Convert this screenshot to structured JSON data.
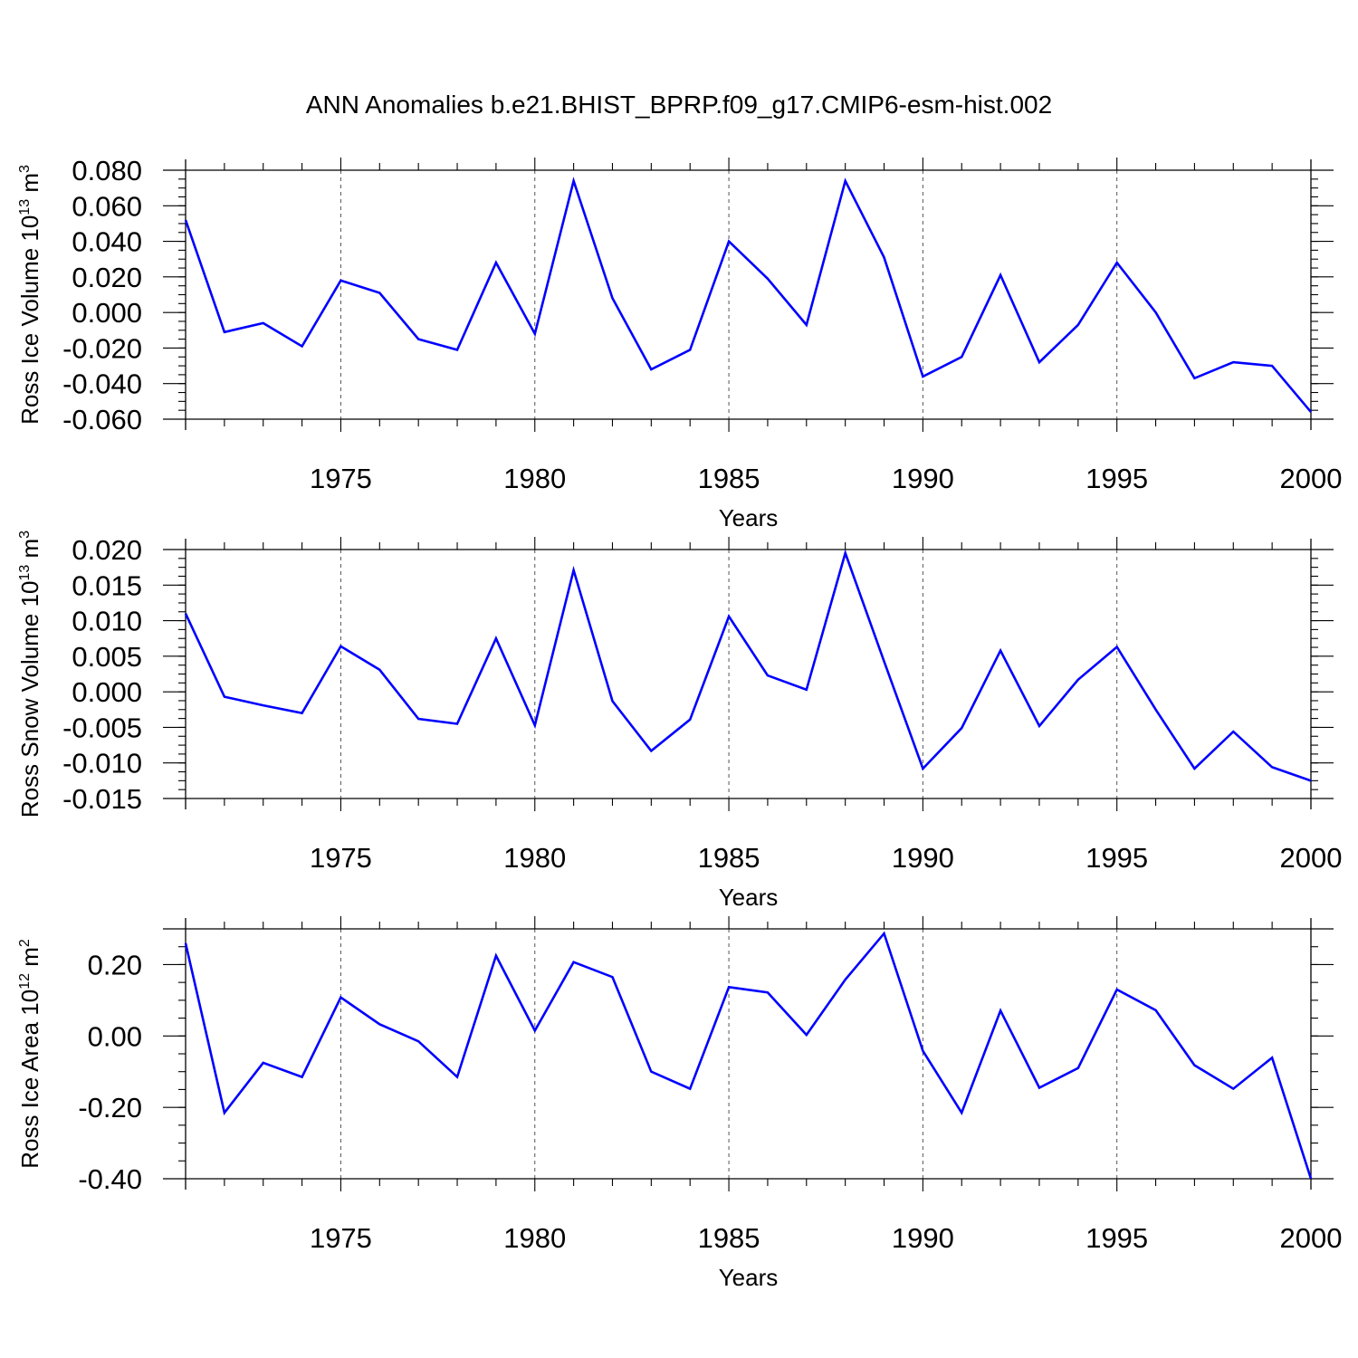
{
  "title": "ANN Anomalies b.e21.BHIST_BPRP.f09_g17.CMIP6-esm-hist.002",
  "colors": {
    "series": "#0000ff",
    "axes": "#000000",
    "grid": "#555555"
  },
  "chart_data": [
    {
      "type": "line",
      "ylabel_parts": [
        "Ross Ice Volume 10",
        "13",
        " m",
        "3"
      ],
      "xlabel": "Years",
      "xlim": [
        1971,
        2000
      ],
      "ylim": [
        -0.06,
        0.08
      ],
      "x_major_ticks": [
        1975,
        1980,
        1985,
        1990,
        1995,
        2000
      ],
      "x_tick_labels": [
        "1975",
        "1980",
        "1985",
        "1990",
        "1995",
        "2000"
      ],
      "y_major_ticks": [
        -0.06,
        -0.04,
        -0.02,
        0.0,
        0.02,
        0.04,
        0.06,
        0.08
      ],
      "y_tick_labels": [
        "-0.060",
        "-0.040",
        "-0.020",
        "0.000",
        "0.020",
        "0.040",
        "0.060",
        "0.080"
      ],
      "y_minor_step": 0.005,
      "grid": "vertical dashed at major x ticks",
      "x": [
        1971,
        1972,
        1973,
        1974,
        1975,
        1976,
        1977,
        1978,
        1979,
        1980,
        1981,
        1982,
        1983,
        1984,
        1985,
        1986,
        1987,
        1988,
        1989,
        1990,
        1991,
        1992,
        1993,
        1994,
        1995,
        1996,
        1997,
        1998,
        1999,
        2000
      ],
      "values": [
        0.052,
        -0.011,
        -0.006,
        -0.019,
        0.018,
        0.011,
        -0.015,
        -0.021,
        0.028,
        -0.012,
        0.074,
        0.008,
        -0.032,
        -0.021,
        0.04,
        0.019,
        -0.007,
        0.074,
        0.031,
        -0.036,
        -0.025,
        0.021,
        -0.028,
        -0.007,
        0.028,
        0.0,
        -0.037,
        -0.028,
        -0.03,
        -0.056
      ]
    },
    {
      "type": "line",
      "ylabel_parts": [
        "Ross Snow Volume 10",
        "13",
        " m",
        "3"
      ],
      "xlabel": "Years",
      "xlim": [
        1971,
        2000
      ],
      "ylim": [
        -0.015,
        0.02
      ],
      "x_major_ticks": [
        1975,
        1980,
        1985,
        1990,
        1995,
        2000
      ],
      "x_tick_labels": [
        "1975",
        "1980",
        "1985",
        "1990",
        "1995",
        "2000"
      ],
      "y_major_ticks": [
        -0.015,
        -0.01,
        -0.005,
        0.0,
        0.005,
        0.01,
        0.015,
        0.02
      ],
      "y_tick_labels": [
        "-0.015",
        "-0.010",
        "-0.005",
        "0.000",
        "0.005",
        "0.010",
        "0.015",
        "0.020"
      ],
      "y_minor_step": 0.00125,
      "grid": "vertical dashed at major x ticks",
      "x": [
        1971,
        1972,
        1973,
        1974,
        1975,
        1976,
        1977,
        1978,
        1979,
        1980,
        1981,
        1982,
        1983,
        1984,
        1985,
        1986,
        1987,
        1988,
        1989,
        1990,
        1991,
        1992,
        1993,
        1994,
        1995,
        1996,
        1997,
        1998,
        1999,
        2000
      ],
      "values": [
        0.011,
        -0.0007,
        -0.0019,
        -0.003,
        0.0064,
        0.0031,
        -0.0038,
        -0.0045,
        0.0075,
        -0.0047,
        0.0171,
        -0.0013,
        -0.0083,
        -0.0039,
        0.0106,
        0.0023,
        0.0003,
        0.0195,
        0.0043,
        -0.0108,
        -0.0051,
        0.0058,
        -0.0048,
        0.0017,
        0.0063,
        -0.0025,
        -0.0108,
        -0.0056,
        -0.0106,
        -0.0125
      ]
    },
    {
      "type": "line",
      "ylabel_parts": [
        "Ross Ice Area 10",
        "12",
        " m",
        "2"
      ],
      "xlabel": "Years",
      "xlim": [
        1971,
        2000
      ],
      "ylim": [
        -0.4,
        0.3
      ],
      "x_major_ticks": [
        1975,
        1980,
        1985,
        1990,
        1995,
        2000
      ],
      "x_tick_labels": [
        "1975",
        "1980",
        "1985",
        "1990",
        "1995",
        "2000"
      ],
      "y_major_ticks": [
        -0.4,
        -0.2,
        0.0,
        0.2
      ],
      "y_tick_labels": [
        "-0.40",
        "-0.20",
        "0.00",
        "0.20"
      ],
      "y_minor_step": 0.05,
      "grid": "vertical dashed at major x ticks",
      "x": [
        1971,
        1972,
        1973,
        1974,
        1975,
        1976,
        1977,
        1978,
        1979,
        1980,
        1981,
        1982,
        1983,
        1984,
        1985,
        1986,
        1987,
        1988,
        1989,
        1990,
        1991,
        1992,
        1993,
        1994,
        1995,
        1996,
        1997,
        1998,
        1999,
        2000
      ],
      "values": [
        0.26,
        -0.215,
        -0.075,
        -0.115,
        0.108,
        0.033,
        -0.015,
        -0.115,
        0.225,
        0.015,
        0.207,
        0.165,
        -0.1,
        -0.148,
        0.137,
        0.122,
        0.003,
        0.158,
        0.287,
        -0.042,
        -0.215,
        0.071,
        -0.145,
        -0.09,
        0.13,
        0.072,
        -0.082,
        -0.148,
        -0.061,
        -0.4
      ]
    }
  ]
}
